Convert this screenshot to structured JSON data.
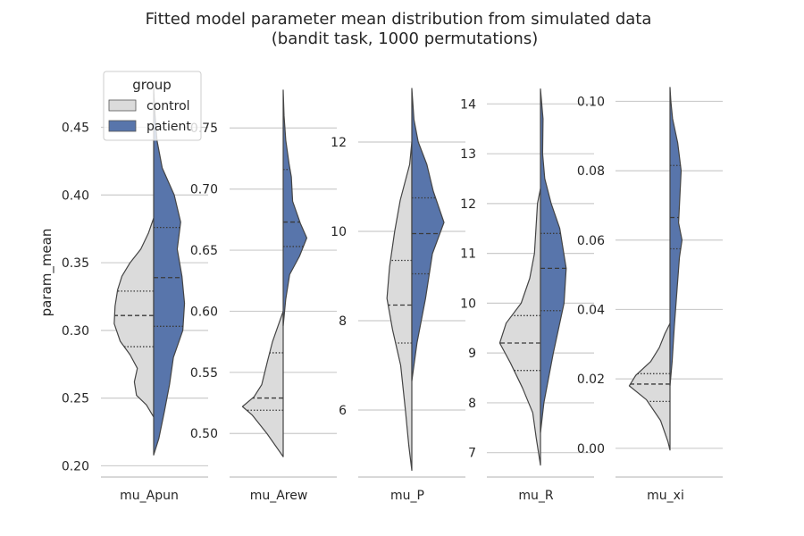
{
  "chart_data": {
    "type": "violin",
    "title": [
      "Fitted model parameter mean distribution from simulated data",
      "(bandit task, 1000 permutations)"
    ],
    "ylabel": "param_mean",
    "legend": {
      "title": "group",
      "entries": [
        {
          "label": "control",
          "color": "#dbdbdb"
        },
        {
          "label": "patient",
          "color": "#5875ab"
        }
      ],
      "placement": "upper-left"
    },
    "grid": true,
    "split": true,
    "inner": "quartile",
    "panels": [
      {
        "name": "mu_Apun",
        "ylim": [
          0.195,
          0.482
        ],
        "ticks": [
          0.2,
          0.25,
          0.3,
          0.35,
          0.4,
          0.45
        ],
        "tick_labels": [
          "0.20",
          "0.25",
          "0.30",
          "0.35",
          "0.40",
          "0.45"
        ],
        "groups": [
          {
            "name": "control",
            "quartiles": [
              0.288,
              0.311,
              0.329
            ],
            "profile": [
              [
                0.236,
                0.0
              ],
              [
                0.245,
                0.17
              ],
              [
                0.252,
                0.4
              ],
              [
                0.262,
                0.45
              ],
              [
                0.272,
                0.38
              ],
              [
                0.282,
                0.55
              ],
              [
                0.292,
                0.78
              ],
              [
                0.305,
                0.92
              ],
              [
                0.318,
                0.9
              ],
              [
                0.33,
                0.84
              ],
              [
                0.34,
                0.74
              ],
              [
                0.35,
                0.55
              ],
              [
                0.36,
                0.3
              ],
              [
                0.372,
                0.12
              ],
              [
                0.383,
                0.0
              ]
            ]
          },
          {
            "name": "patient",
            "quartiles": [
              0.303,
              0.339,
              0.376
            ],
            "profile": [
              [
                0.208,
                0.0
              ],
              [
                0.22,
                0.12
              ],
              [
                0.24,
                0.25
              ],
              [
                0.26,
                0.37
              ],
              [
                0.28,
                0.46
              ],
              [
                0.3,
                0.68
              ],
              [
                0.32,
                0.72
              ],
              [
                0.34,
                0.66
              ],
              [
                0.36,
                0.55
              ],
              [
                0.38,
                0.63
              ],
              [
                0.4,
                0.48
              ],
              [
                0.42,
                0.2
              ],
              [
                0.44,
                0.08
              ],
              [
                0.46,
                0.03
              ],
              [
                0.479,
                0.0
              ]
            ]
          }
        ]
      },
      {
        "name": "mu_Arew",
        "ylim": [
          0.468,
          0.786
        ],
        "ticks": [
          0.5,
          0.55,
          0.6,
          0.65,
          0.7,
          0.75
        ],
        "tick_labels": [
          "0.50",
          "0.55",
          "0.60",
          "0.65",
          "0.70",
          "0.75"
        ],
        "groups": [
          {
            "name": "control",
            "quartiles": [
              0.519,
              0.529,
              0.566
            ],
            "profile": [
              [
                0.481,
                0.0
              ],
              [
                0.5,
                0.38
              ],
              [
                0.515,
                0.72
              ],
              [
                0.522,
                0.95
              ],
              [
                0.53,
                0.68
              ],
              [
                0.54,
                0.5
              ],
              [
                0.55,
                0.43
              ],
              [
                0.56,
                0.36
              ],
              [
                0.575,
                0.25
              ],
              [
                0.59,
                0.1
              ],
              [
                0.6,
                0.0
              ]
            ]
          },
          {
            "name": "patient",
            "quartiles": [
              0.653,
              0.673,
              0.716
            ],
            "profile": [
              [
                0.588,
                0.0
              ],
              [
                0.61,
                0.06
              ],
              [
                0.63,
                0.15
              ],
              [
                0.645,
                0.38
              ],
              [
                0.66,
                0.55
              ],
              [
                0.672,
                0.4
              ],
              [
                0.69,
                0.22
              ],
              [
                0.71,
                0.19
              ],
              [
                0.72,
                0.14
              ],
              [
                0.74,
                0.06
              ],
              [
                0.76,
                0.02
              ],
              [
                0.781,
                0.0
              ]
            ]
          }
        ]
      },
      {
        "name": "mu_P",
        "ylim": [
          4.6,
          13.3
        ],
        "ticks": [
          6,
          8,
          10,
          12
        ],
        "tick_labels": [
          "6",
          "8",
          "10",
          "12"
        ],
        "groups": [
          {
            "name": "control",
            "quartiles": [
              7.5,
              8.35,
              9.35
            ],
            "profile": [
              [
                4.65,
                0.0
              ],
              [
                5.2,
                0.07
              ],
              [
                6.0,
                0.15
              ],
              [
                7.0,
                0.26
              ],
              [
                7.8,
                0.45
              ],
              [
                8.5,
                0.58
              ],
              [
                9.2,
                0.52
              ],
              [
                10.0,
                0.4
              ],
              [
                10.7,
                0.27
              ],
              [
                11.5,
                0.05
              ],
              [
                12.0,
                0.0
              ]
            ]
          },
          {
            "name": "patient",
            "quartiles": [
              9.05,
              9.95,
              10.75
            ],
            "profile": [
              [
                6.65,
                0.0
              ],
              [
                7.5,
                0.12
              ],
              [
                8.5,
                0.32
              ],
              [
                9.5,
                0.48
              ],
              [
                10.2,
                0.75
              ],
              [
                10.9,
                0.5
              ],
              [
                11.5,
                0.35
              ],
              [
                12.0,
                0.15
              ],
              [
                12.5,
                0.05
              ],
              [
                13.2,
                0.0
              ]
            ]
          }
        ]
      },
      {
        "name": "mu_R",
        "ylim": [
          6.6,
          14.4
        ],
        "ticks": [
          7,
          8,
          9,
          10,
          11,
          12,
          13,
          14
        ],
        "tick_labels": [
          "7",
          "8",
          "9",
          "10",
          "11",
          "12",
          "13",
          "14"
        ],
        "groups": [
          {
            "name": "control",
            "quartiles": [
              8.65,
              9.2,
              9.75
            ],
            "profile": [
              [
                6.75,
                0.0
              ],
              [
                7.3,
                0.1
              ],
              [
                7.8,
                0.18
              ],
              [
                8.3,
                0.42
              ],
              [
                8.8,
                0.7
              ],
              [
                9.2,
                0.95
              ],
              [
                9.6,
                0.8
              ],
              [
                10.0,
                0.45
              ],
              [
                10.5,
                0.25
              ],
              [
                11.0,
                0.14
              ],
              [
                12.0,
                0.07
              ],
              [
                12.3,
                0.0
              ]
            ]
          },
          {
            "name": "patient",
            "quartiles": [
              9.85,
              10.7,
              11.4
            ],
            "profile": [
              [
                7.4,
                0.0
              ],
              [
                8.0,
                0.08
              ],
              [
                9.0,
                0.3
              ],
              [
                10.0,
                0.55
              ],
              [
                10.7,
                0.6
              ],
              [
                11.5,
                0.45
              ],
              [
                12.0,
                0.25
              ],
              [
                12.5,
                0.1
              ],
              [
                13.0,
                0.05
              ],
              [
                13.7,
                0.06
              ],
              [
                14.3,
                0.0
              ]
            ]
          }
        ]
      },
      {
        "name": "mu_xi",
        "ylim": [
          -0.007,
          0.105
        ],
        "ticks": [
          0.0,
          0.02,
          0.04,
          0.06,
          0.08,
          0.1
        ],
        "tick_labels": [
          "0.00",
          "0.02",
          "0.04",
          "0.06",
          "0.08",
          "0.10"
        ],
        "groups": [
          {
            "name": "control",
            "quartiles": [
              0.0135,
              0.0185,
              0.0215
            ],
            "profile": [
              [
                -0.0005,
                0.0
              ],
              [
                0.002,
                0.05
              ],
              [
                0.008,
                0.22
              ],
              [
                0.014,
                0.55
              ],
              [
                0.018,
                0.95
              ],
              [
                0.021,
                0.8
              ],
              [
                0.025,
                0.45
              ],
              [
                0.029,
                0.25
              ],
              [
                0.033,
                0.12
              ],
              [
                0.036,
                0.0
              ]
            ]
          },
          {
            "name": "patient",
            "quartiles": [
              0.0575,
              0.0665,
              0.0815
            ],
            "profile": [
              [
                0.018,
                0.0
              ],
              [
                0.025,
                0.05
              ],
              [
                0.035,
                0.1
              ],
              [
                0.045,
                0.16
              ],
              [
                0.055,
                0.22
              ],
              [
                0.06,
                0.28
              ],
              [
                0.065,
                0.2
              ],
              [
                0.07,
                0.22
              ],
              [
                0.08,
                0.26
              ],
              [
                0.088,
                0.18
              ],
              [
                0.095,
                0.06
              ],
              [
                0.1,
                0.02
              ],
              [
                0.104,
                0.0
              ]
            ]
          }
        ]
      }
    ]
  }
}
